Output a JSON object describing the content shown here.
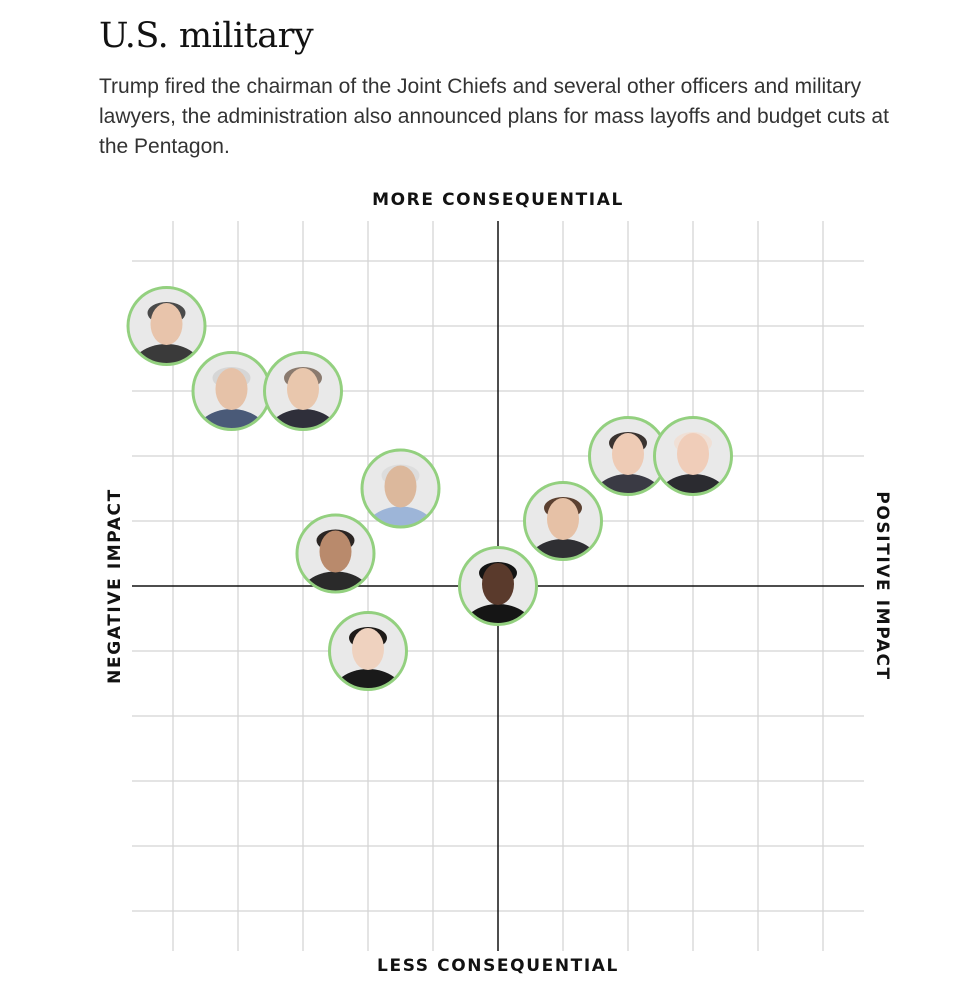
{
  "header": {
    "title": "U.S. military",
    "description": "Trump fired the chairman of the Joint Chiefs and several other officers and military lawyers, the administration also announced plans for mass layoffs and budget cuts at the Pentagon."
  },
  "colors": {
    "grid": "#d3d3d3",
    "axis": "#121212",
    "ring": "#93d07f",
    "avatar_bg": "#e9e9e9"
  },
  "chart_data": {
    "type": "scatter",
    "title": "",
    "axes": {
      "top_label": "MORE CONSEQUENTIAL",
      "bottom_label": "LESS CONSEQUENTIAL",
      "left_label": "NEGATIVE IMPACT",
      "right_label": "POSITIVE IMPACT"
    },
    "xlim": [
      -5.5,
      5.5
    ],
    "ylim": [
      -5.5,
      5.5
    ],
    "grid": true,
    "marker": "columnist-headshot",
    "points": [
      {
        "x": -5.1,
        "y": 4.0
      },
      {
        "x": -4.1,
        "y": 3.0
      },
      {
        "x": -3.0,
        "y": 3.0
      },
      {
        "x": -1.5,
        "y": 1.5
      },
      {
        "x": -2.5,
        "y": 0.5
      },
      {
        "x": -2.0,
        "y": -1.0
      },
      {
        "x": 0.0,
        "y": 0.0
      },
      {
        "x": 1.0,
        "y": 1.0
      },
      {
        "x": 2.0,
        "y": 2.0
      },
      {
        "x": 3.0,
        "y": 2.0
      }
    ]
  }
}
